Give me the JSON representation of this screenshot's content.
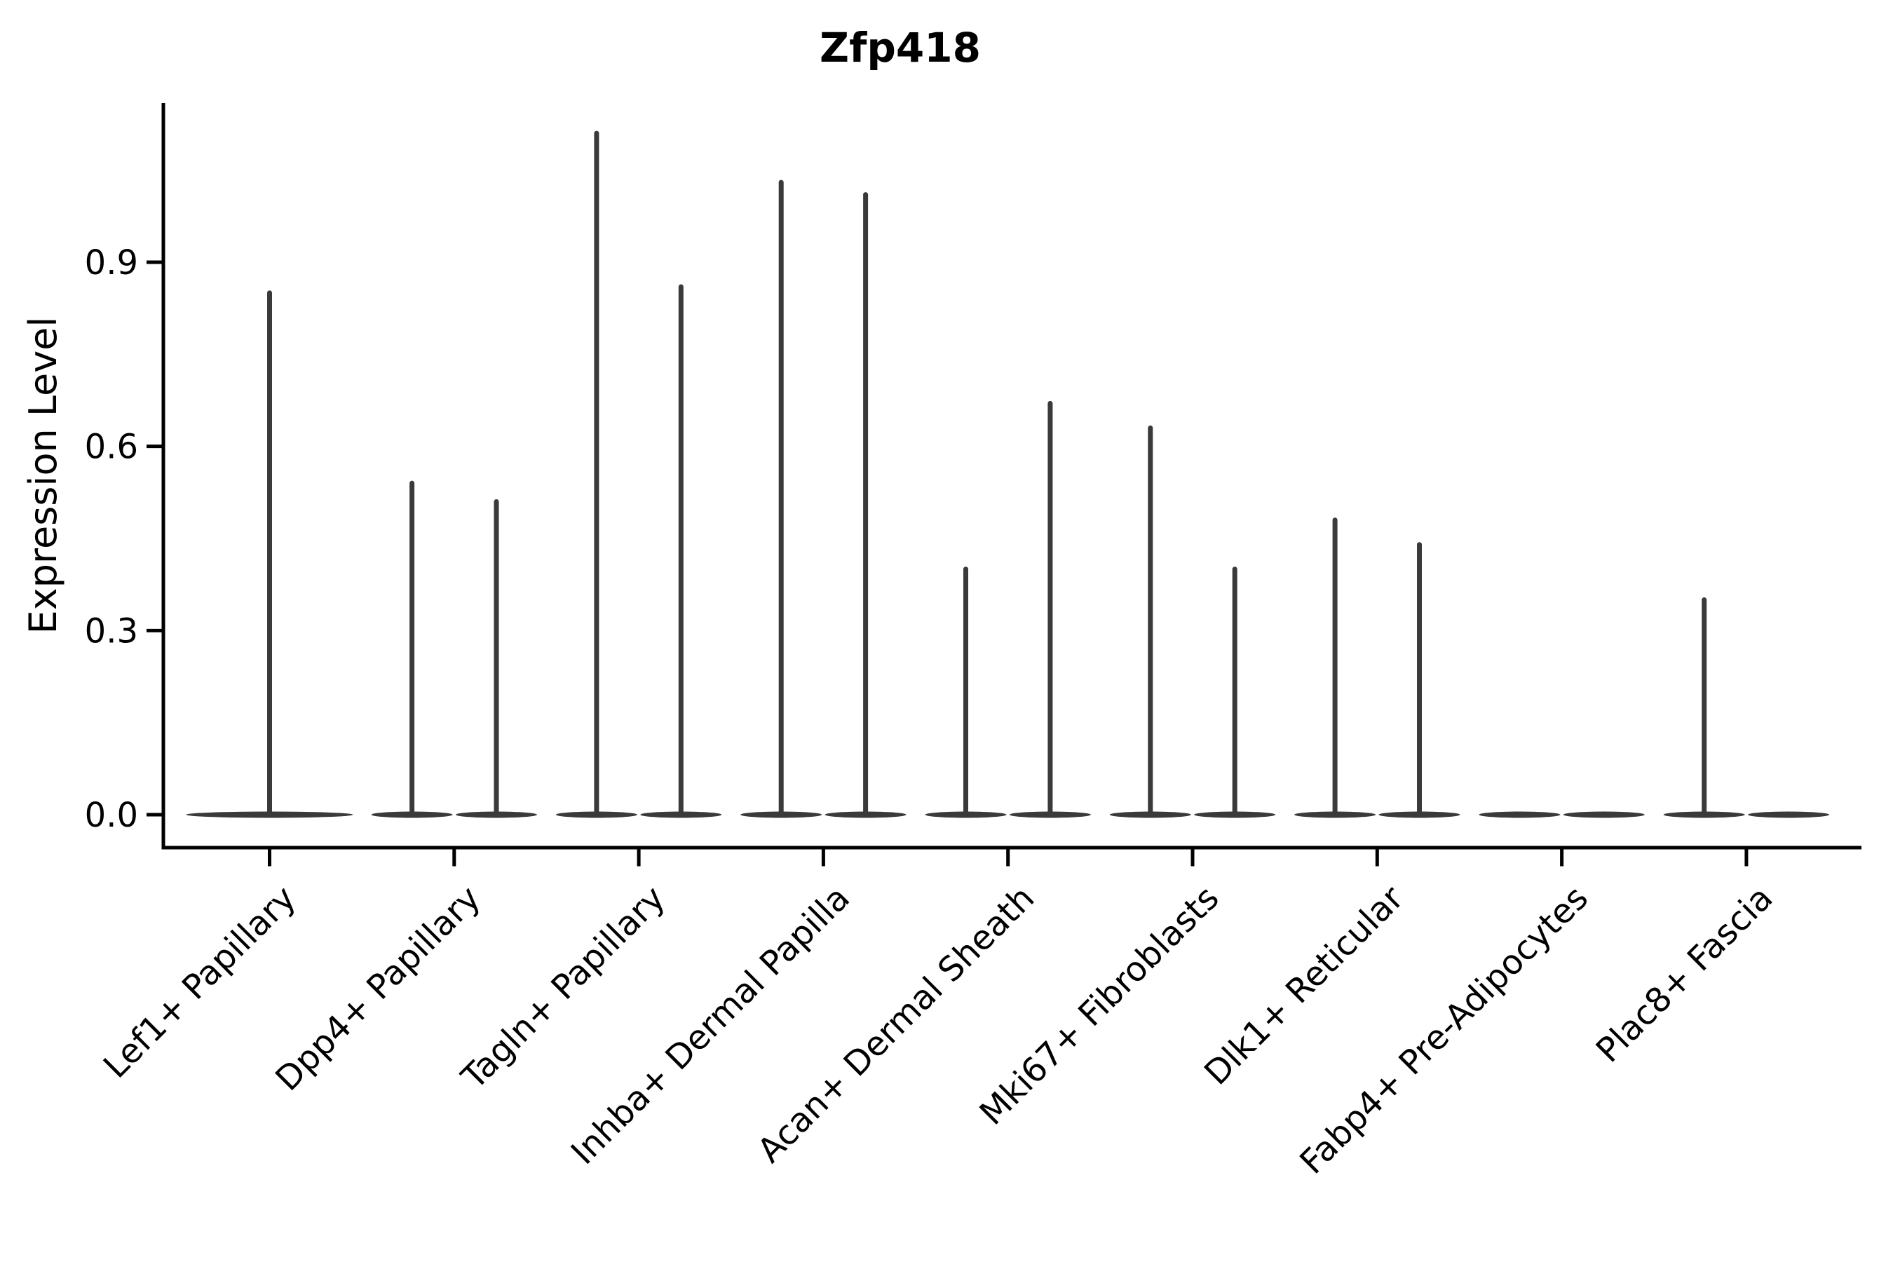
{
  "chart_data": {
    "type": "violin",
    "title": "Zfp418",
    "ylabel": "Expression Level",
    "xlabel": "",
    "legend": "none",
    "grid": false,
    "background": "#ffffff",
    "y_ticks": [
      "0.0",
      "0.3",
      "0.6",
      "0.9"
    ],
    "y_tick_values": [
      0.0,
      0.3,
      0.6,
      0.9
    ],
    "ylim": [
      0.0,
      1.16
    ],
    "categories": [
      "Lef1+ Papillary",
      "Dpp4+ Papillary",
      "Tagln+ Papillary",
      "Inhba+ Dermal Papilla",
      "Acan+ Dermal Sheath",
      "Mki67+ Fibroblasts",
      "Dlk1+ Reticular",
      "Fabp4+ Pre-Adipocytes",
      "Plac8+ Fascia"
    ],
    "violins": [
      {
        "category": "Lef1+ Papillary",
        "layout": "single",
        "needles": [
          {
            "position": "center",
            "max": 0.85
          }
        ]
      },
      {
        "category": "Dpp4+ Papillary",
        "layout": "pair",
        "needles": [
          {
            "position": "left",
            "max": 0.54
          },
          {
            "position": "right",
            "max": 0.51
          }
        ]
      },
      {
        "category": "Tagln+ Papillary",
        "layout": "pair",
        "needles": [
          {
            "position": "left",
            "max": 1.11
          },
          {
            "position": "right",
            "max": 0.86
          }
        ]
      },
      {
        "category": "Inhba+ Dermal Papilla",
        "layout": "pair",
        "needles": [
          {
            "position": "left",
            "max": 1.03
          },
          {
            "position": "right",
            "max": 1.01
          }
        ]
      },
      {
        "category": "Acan+ Dermal Sheath",
        "layout": "pair",
        "needles": [
          {
            "position": "left",
            "max": 0.4
          },
          {
            "position": "right",
            "max": 0.67
          }
        ]
      },
      {
        "category": "Mki67+ Fibroblasts",
        "layout": "pair",
        "needles": [
          {
            "position": "left",
            "max": 0.63
          },
          {
            "position": "right",
            "max": 0.4
          }
        ]
      },
      {
        "category": "Dlk1+ Reticular",
        "layout": "pair",
        "needles": [
          {
            "position": "left",
            "max": 0.48
          },
          {
            "position": "right",
            "max": 0.44
          }
        ]
      },
      {
        "category": "Fabp4+ Pre-Adipocytes",
        "layout": "pair",
        "needles": []
      },
      {
        "category": "Plac8+ Fascia",
        "layout": "pair",
        "needles": [
          {
            "position": "left",
            "max": 0.35
          }
        ]
      }
    ],
    "colors": {
      "violin": "#3a3a3a",
      "axis": "#000000",
      "text": "#000000"
    }
  }
}
